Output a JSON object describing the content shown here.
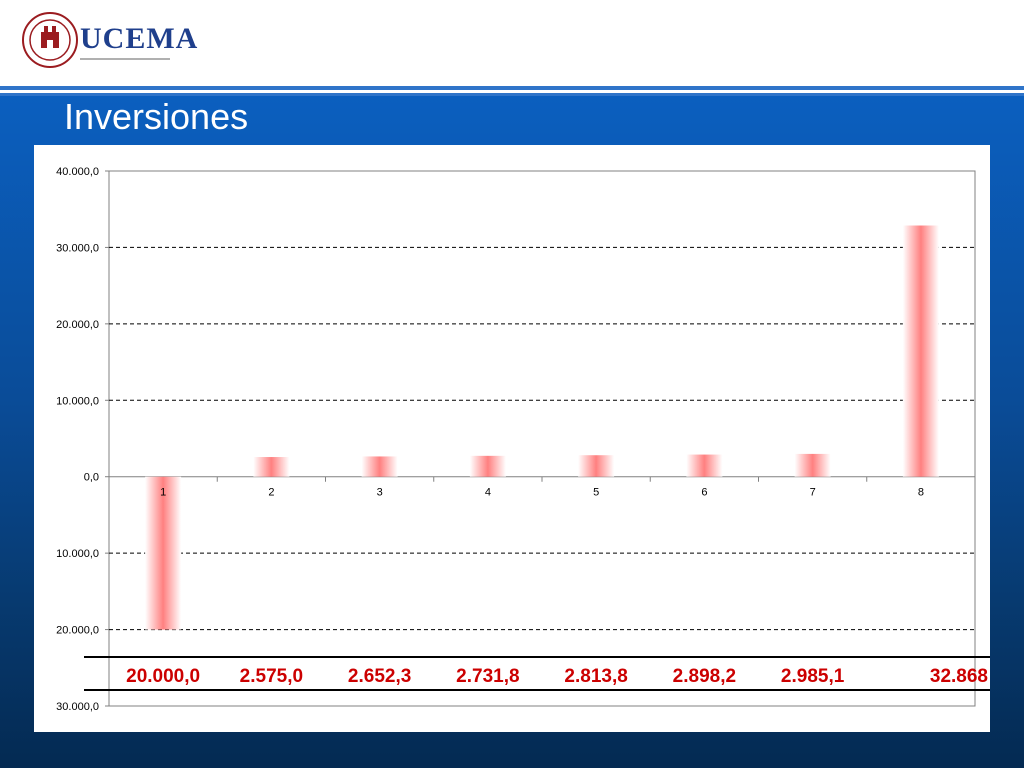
{
  "header": {
    "logo_text": "UCEMA",
    "seal_top_text": "UNIVERSIDAD DEL CEMA",
    "seal_bottom_text": "MCMXCVIII",
    "colors": {
      "logo_text": "#1f3f8c",
      "seal": "#9b1c20"
    }
  },
  "slide": {
    "title": "Inversiones"
  },
  "chart_data": {
    "type": "bar",
    "title": "",
    "xlabel": "",
    "ylabel": "",
    "categories": [
      "1",
      "2",
      "3",
      "4",
      "5",
      "6",
      "7",
      "8"
    ],
    "values": [
      -20000.0,
      2575.0,
      2652.3,
      2731.8,
      2813.8,
      2898.2,
      2985.1,
      32868
    ],
    "value_labels": [
      "20.000,0",
      "2.575,0",
      "2.652,3",
      "2.731,8",
      "2.813,8",
      "2.898,2",
      "2.985,1",
      "32.868"
    ],
    "ylim": [
      -30000,
      40000
    ],
    "y_ticks": [
      40000,
      30000,
      20000,
      10000,
      0,
      -10000,
      -20000,
      -30000
    ],
    "y_tick_labels": [
      "40.000,0",
      "30.000,0",
      "20.000,0",
      "10.000,0",
      "0,0",
      "10.000,0",
      "20.000,0",
      "30.000,0"
    ],
    "grid": true,
    "grid_style": "dashed",
    "legend": "none",
    "bar_color": "#ff8080"
  }
}
